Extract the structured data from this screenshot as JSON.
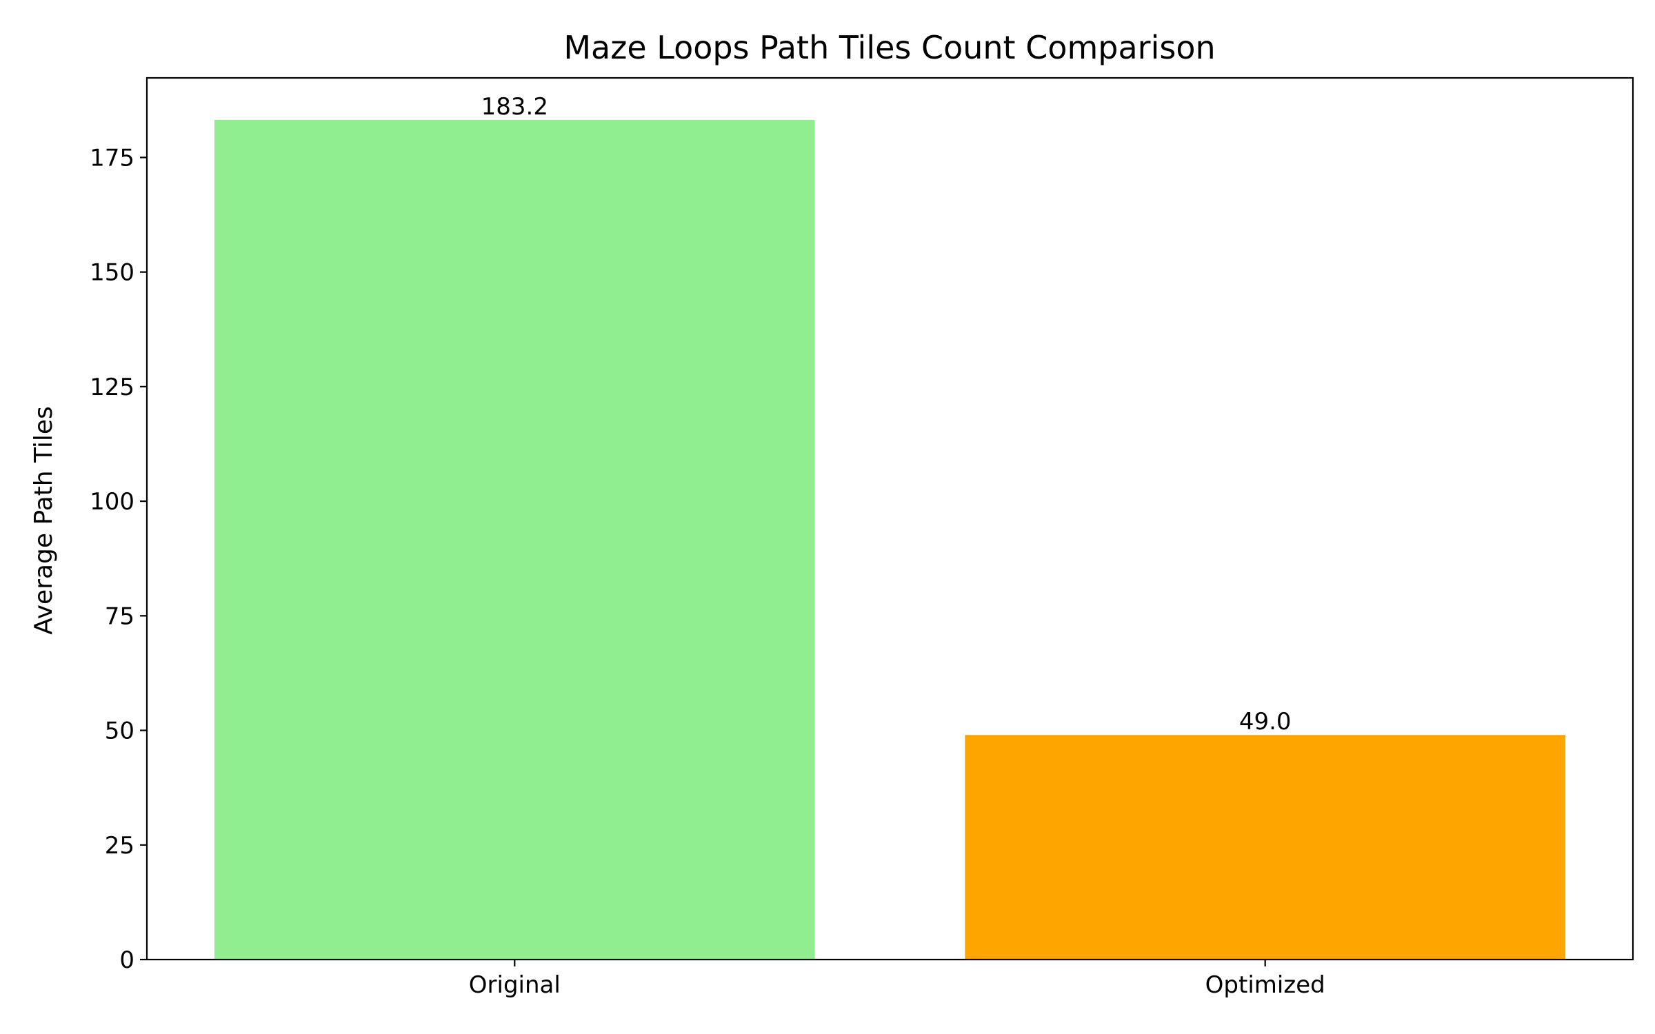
{
  "chart_data": {
    "type": "bar",
    "title": "Maze Loops Path Tiles Count Comparison",
    "xlabel": "",
    "ylabel": "Average Path Tiles",
    "categories": [
      "Original",
      "Optimized"
    ],
    "values": [
      183.2,
      49.0
    ],
    "value_labels": [
      "183.2",
      "49.0"
    ],
    "colors": [
      "#90ee90",
      "#ffa500"
    ],
    "ylim": [
      0,
      192.36
    ],
    "yticks": [
      0,
      25,
      50,
      75,
      100,
      125,
      150,
      175
    ],
    "ytick_labels": [
      "0",
      "25",
      "50",
      "75",
      "100",
      "125",
      "150",
      "175"
    ],
    "grid": false,
    "legend": "none"
  }
}
